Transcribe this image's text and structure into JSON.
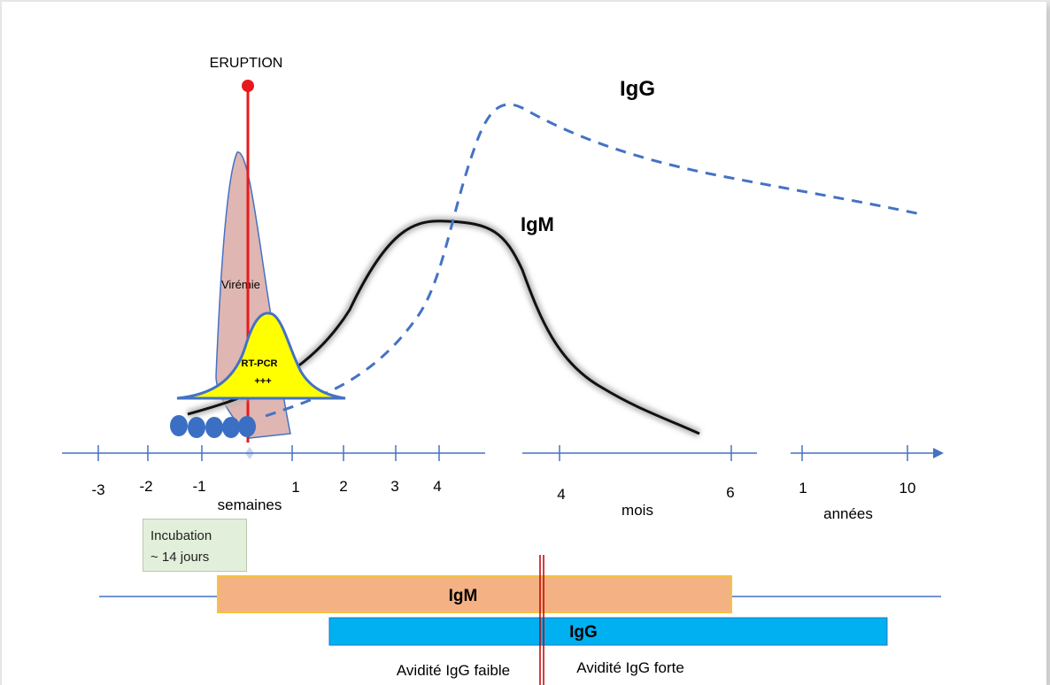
{
  "labels": {
    "eruption": "ERUPTION",
    "igg_curve": "IgG",
    "igm_curve": "IgM",
    "viremia": "Virémie",
    "rtpcr_line1": "RT-PCR",
    "rtpcr_line2": "+++",
    "unit_weeks": "semaines",
    "unit_months": "mois",
    "unit_years": "années",
    "incubation_line1": "Incubation",
    "incubation_line2": "~ 14 jours",
    "bar_igm": "IgM",
    "bar_igg": "IgG",
    "avidity_low": "Avidité IgG faible",
    "avidity_high": "Avidité IgG forte"
  },
  "axis": {
    "weeks_ticks": [
      "-3",
      "-2",
      "-1",
      "1",
      "2",
      "3",
      "4"
    ],
    "months_ticks": [
      "4",
      "6"
    ],
    "years_ticks": [
      "1",
      "10"
    ]
  },
  "colors": {
    "axis": "#4472c4",
    "eruption": "#e8191c",
    "viremia_fill": "#d9a9a4",
    "rtpcr_fill": "#ffff00",
    "igm_bar": "#f4b183",
    "igm_bar_border": "#f5c242",
    "igg_bar": "#00b0f0",
    "divider": "#c00000",
    "igg_curve": "#4472c4",
    "igm_curve": "#111111"
  }
}
